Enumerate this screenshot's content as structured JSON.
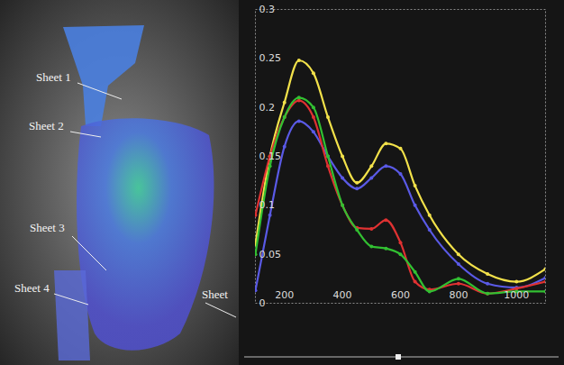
{
  "image": {
    "labels": [
      "Sheet 1",
      "Sheet 2",
      "Sheet 3",
      "Sheet 4",
      "Sheet"
    ]
  },
  "chart_data": {
    "type": "line",
    "x": [
      100,
      150,
      200,
      250,
      300,
      350,
      400,
      450,
      500,
      550,
      600,
      650,
      700,
      800,
      900,
      1000,
      1100
    ],
    "series": [
      {
        "color": "#f2e14a",
        "values": [
          0.06,
          0.15,
          0.205,
          0.248,
          0.235,
          0.19,
          0.15,
          0.123,
          0.14,
          0.163,
          0.158,
          0.12,
          0.09,
          0.05,
          0.03,
          0.022,
          0.035
        ]
      },
      {
        "color": "#5a5ae6",
        "values": [
          0.013,
          0.09,
          0.16,
          0.186,
          0.175,
          0.15,
          0.128,
          0.117,
          0.128,
          0.14,
          0.132,
          0.1,
          0.075,
          0.04,
          0.02,
          0.016,
          0.026
        ]
      },
      {
        "color": "#e03232",
        "values": [
          0.09,
          0.15,
          0.19,
          0.207,
          0.19,
          0.14,
          0.1,
          0.077,
          0.076,
          0.085,
          0.062,
          0.022,
          0.014,
          0.02,
          0.01,
          0.015,
          0.022
        ]
      },
      {
        "color": "#32c032",
        "values": [
          0.05,
          0.14,
          0.19,
          0.21,
          0.2,
          0.15,
          0.1,
          0.075,
          0.058,
          0.056,
          0.05,
          0.032,
          0.012,
          0.025,
          0.01,
          0.012,
          0.012
        ]
      }
    ],
    "xlim": [
      100,
      1100
    ],
    "xticks": [
      200,
      400,
      600,
      800,
      1000
    ],
    "ylim": [
      0,
      0.3
    ],
    "yticks": [
      0,
      0.05,
      0.1,
      0.15,
      0.2,
      0.25,
      0.3
    ],
    "grid": false,
    "marker": "circle"
  }
}
